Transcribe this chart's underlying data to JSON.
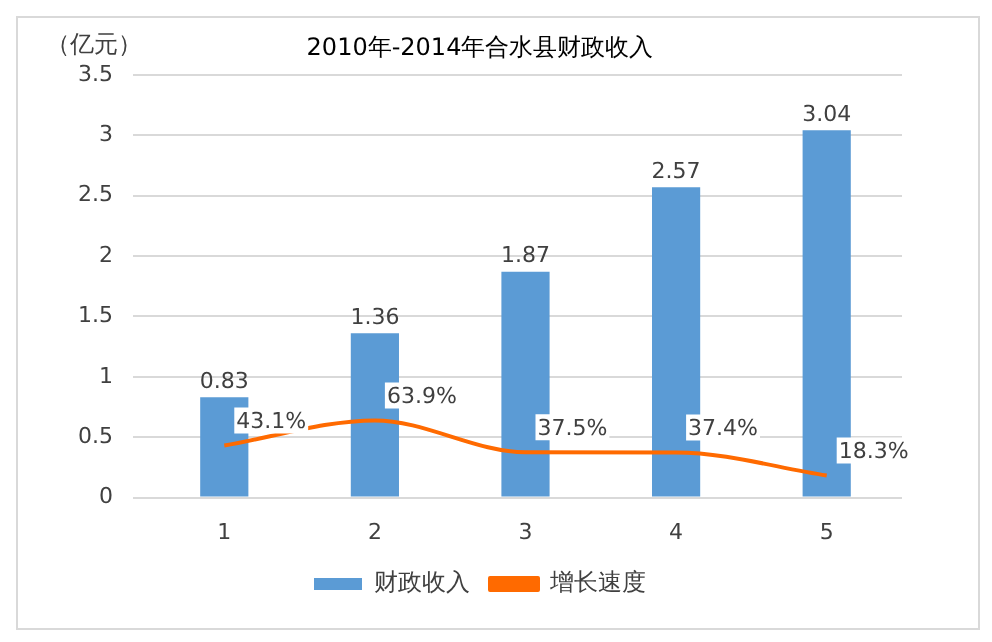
{
  "chart_data": {
    "type": "bar",
    "title": "2010年-2014年合水县财政收入",
    "ylabel": "（亿元）",
    "categories": [
      "1",
      "2",
      "3",
      "4",
      "5"
    ],
    "series": [
      {
        "name": "财政收入",
        "color": "#5b9bd5",
        "values": [
          0.83,
          1.36,
          1.87,
          2.57,
          3.04
        ],
        "value_labels": [
          "0.83",
          "1.36",
          "1.87",
          "2.57",
          "3.04"
        ]
      },
      {
        "name": "增长速度",
        "type": "line",
        "color": "#ff6a00",
        "values": [
          0.431,
          0.639,
          0.375,
          0.374,
          0.183
        ],
        "value_labels": [
          "43.1%",
          "63.9%",
          "37.5%",
          "37.4%",
          "18.3%"
        ]
      }
    ],
    "ylim": [
      0,
      3.5
    ],
    "yticks": [
      0,
      0.5,
      1,
      1.5,
      2,
      2.5,
      3,
      3.5
    ],
    "grid": "y",
    "legend": "bottom",
    "marker": "none"
  }
}
